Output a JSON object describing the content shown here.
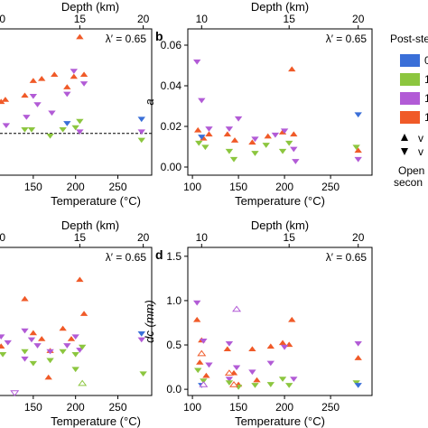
{
  "legend": {
    "title": "Post-ste",
    "items": [
      {
        "label": "0",
        "color": "#3a6fd8"
      },
      {
        "label": "1",
        "color": "#8cc63f"
      },
      {
        "label": "1",
        "color": "#b25bd6"
      },
      {
        "label": "1",
        "color": "#f05a28"
      }
    ],
    "up_label": "v",
    "down_label": "v",
    "note_lines": [
      "Open",
      "secon"
    ]
  },
  "chart_data": [
    {
      "type": "scatter",
      "panel": "a",
      "panel_label": "",
      "annotation": "λ′ = 0.65",
      "xlabel": "Temperature (°C)",
      "ylabel": "",
      "top_axis_label": "Depth (km)",
      "top_ticks": [
        "10",
        "15",
        "20"
      ],
      "top_tick_values_temp": [
        110,
        205,
        280
      ],
      "xlim": [
        100,
        290
      ],
      "xticks": [
        150,
        200,
        250
      ],
      "ylim": [
        0.0,
        0.07
      ],
      "yticks": [],
      "hline": 0.02,
      "series": [
        {
          "color": "#f05a28",
          "points": [
            [
              104,
              0.037,
              "up"
            ],
            [
              108,
              0.033,
              "up"
            ],
            [
              112,
              0.035,
              "up"
            ],
            [
              117,
              0.036,
              "up"
            ],
            [
              140,
              0.038,
              "up"
            ],
            [
              150,
              0.045,
              "up"
            ],
            [
              160,
              0.046,
              "up"
            ],
            [
              175,
              0.048,
              "up"
            ],
            [
              190,
              0.042,
              "up"
            ],
            [
              198,
              0.047,
              "up"
            ],
            [
              205,
              0.066,
              "up"
            ],
            [
              210,
              0.048,
              "up"
            ]
          ]
        },
        {
          "color": "#b25bd6",
          "points": [
            [
              105,
              0.026,
              "down"
            ],
            [
              110,
              0.031,
              "down"
            ],
            [
              118,
              0.024,
              "down"
            ],
            [
              142,
              0.028,
              "down"
            ],
            [
              150,
              0.038,
              "down"
            ],
            [
              155,
              0.034,
              "down"
            ],
            [
              172,
              0.03,
              "down"
            ],
            [
              190,
              0.039,
              "down"
            ],
            [
              198,
              0.05,
              "down"
            ],
            [
              205,
              0.021,
              "down"
            ],
            [
              210,
              0.044,
              "down"
            ],
            [
              278,
              0.021,
              "down"
            ]
          ]
        },
        {
          "color": "#8cc63f",
          "points": [
            [
              104,
              0.021,
              "down"
            ],
            [
              110,
              0.02,
              "down"
            ],
            [
              140,
              0.022,
              "down"
            ],
            [
              148,
              0.022,
              "down"
            ],
            [
              170,
              0.019,
              "down"
            ],
            [
              185,
              0.022,
              "down"
            ],
            [
              200,
              0.023,
              "down"
            ],
            [
              205,
              0.026,
              "down"
            ],
            [
              278,
              0.017,
              "down"
            ]
          ]
        },
        {
          "color": "#3a6fd8",
          "points": [
            [
              108,
              0.024,
              "down"
            ],
            [
              190,
              0.025,
              "down"
            ],
            [
              278,
              0.027,
              "down"
            ]
          ]
        }
      ]
    },
    {
      "type": "scatter",
      "panel": "b",
      "panel_label": "b",
      "annotation": "λ′ = 0.65",
      "xlabel": "Temperature (°C)",
      "ylabel": "a",
      "top_axis_label": "Depth (km)",
      "top_ticks": [
        "10",
        "15",
        "20"
      ],
      "top_tick_values_temp": [
        110,
        205,
        280
      ],
      "xlim": [
        95,
        295
      ],
      "xticks": [
        100,
        150,
        200,
        250
      ],
      "ylim": [
        -0.004,
        0.068
      ],
      "yticks": [
        0.0,
        0.02,
        0.04,
        0.06
      ],
      "ytick_labels": [
        "0.00",
        "0.02",
        "0.04",
        "0.06"
      ],
      "series": [
        {
          "color": "#f05a28",
          "points": [
            [
              106,
              0.018,
              "up"
            ],
            [
              112,
              0.014,
              "up"
            ],
            [
              118,
              0.016,
              "up"
            ],
            [
              138,
              0.016,
              "up"
            ],
            [
              146,
              0.013,
              "up"
            ],
            [
              165,
              0.012,
              "up"
            ],
            [
              182,
              0.015,
              "up"
            ],
            [
              198,
              0.017,
              "up"
            ],
            [
              208,
              0.048,
              "up"
            ],
            [
              210,
              0.016,
              "up"
            ],
            [
              280,
              0.008,
              "up"
            ]
          ]
        },
        {
          "color": "#b25bd6",
          "points": [
            [
              105,
              0.052,
              "down"
            ],
            [
              110,
              0.033,
              "down"
            ],
            [
              118,
              0.019,
              "down"
            ],
            [
              140,
              0.019,
              "down"
            ],
            [
              150,
              0.024,
              "down"
            ],
            [
              168,
              0.014,
              "down"
            ],
            [
              190,
              0.016,
              "down"
            ],
            [
              200,
              0.018,
              "down"
            ],
            [
              210,
              0.009,
              "down"
            ],
            [
              212,
              0.003,
              "down"
            ],
            [
              280,
              0.004,
              "down"
            ]
          ]
        },
        {
          "color": "#8cc63f",
          "points": [
            [
              107,
              0.012,
              "down"
            ],
            [
              114,
              0.01,
              "down"
            ],
            [
              140,
              0.008,
              "down"
            ],
            [
              145,
              0.004,
              "down"
            ],
            [
              168,
              0.007,
              "down"
            ],
            [
              180,
              0.011,
              "down"
            ],
            [
              198,
              0.008,
              "down"
            ],
            [
              205,
              0.012,
              "down"
            ],
            [
              278,
              0.01,
              "down"
            ]
          ]
        },
        {
          "color": "#3a6fd8",
          "points": [
            [
              110,
              0.015,
              "down"
            ],
            [
              280,
              0.026,
              "down"
            ]
          ]
        }
      ]
    },
    {
      "type": "scatter",
      "panel": "c",
      "panel_label": "",
      "annotation": "λ′ = 0.65",
      "xlabel": "Temperature (°C)",
      "ylabel": "",
      "top_axis_label": "Depth (km)",
      "top_ticks": [
        "10",
        "15",
        "20"
      ],
      "top_tick_values_temp": [
        110,
        205,
        280
      ],
      "xlim": [
        100,
        290
      ],
      "xticks": [
        150,
        200,
        250
      ],
      "ylim": [
        0.0,
        1.0
      ],
      "yticks": [],
      "series": [
        {
          "color": "#f05a28",
          "points": [
            [
              104,
              0.55,
              "up"
            ],
            [
              108,
              0.4,
              "up"
            ],
            [
              112,
              0.33,
              "up"
            ],
            [
              140,
              0.65,
              "up"
            ],
            [
              150,
              0.42,
              "up"
            ],
            [
              160,
              0.38,
              "up"
            ],
            [
              170,
              0.3,
              "up"
            ],
            [
              185,
              0.45,
              "up"
            ],
            [
              195,
              0.38,
              "up"
            ],
            [
              205,
              0.78,
              "up"
            ],
            [
              210,
              0.55,
              "up"
            ],
            [
              168,
              0.12,
              "up"
            ],
            [
              110,
              0.15,
              "up"
            ]
          ]
        },
        {
          "color": "#b25bd6",
          "points": [
            [
              106,
              0.47,
              "down"
            ],
            [
              112,
              0.4,
              "down"
            ],
            [
              120,
              0.36,
              "down"
            ],
            [
              140,
              0.44,
              "down"
            ],
            [
              148,
              0.38,
              "down"
            ],
            [
              155,
              0.34,
              "down"
            ],
            [
              170,
              0.3,
              "down"
            ],
            [
              190,
              0.34,
              "down"
            ],
            [
              200,
              0.4,
              "down"
            ],
            [
              205,
              0.31,
              "down"
            ],
            [
              278,
              0.38,
              "down"
            ],
            [
              140,
              0.25,
              "down"
            ]
          ]
        },
        {
          "color": "#8cc63f",
          "points": [
            [
              106,
              0.32,
              "down"
            ],
            [
              114,
              0.28,
              "down"
            ],
            [
              140,
              0.3,
              "down"
            ],
            [
              150,
              0.22,
              "down"
            ],
            [
              170,
              0.24,
              "down"
            ],
            [
              185,
              0.3,
              "down"
            ],
            [
              200,
              0.28,
              "down"
            ],
            [
              208,
              0.33,
              "down"
            ],
            [
              280,
              0.15,
              "down"
            ],
            [
              200,
              0.18,
              "down"
            ]
          ]
        },
        {
          "color": "#3a6fd8",
          "points": [
            [
              110,
              0.36,
              "down"
            ],
            [
              278,
              0.42,
              "down"
            ]
          ]
        }
      ],
      "open_points": [
        [
          128,
          0.02,
          "#b25bd6",
          "down"
        ],
        [
          208,
          0.08,
          "#8cc63f",
          "up"
        ]
      ]
    },
    {
      "type": "scatter",
      "panel": "d",
      "panel_label": "d",
      "annotation": "λ′ = 0.65",
      "xlabel": "Temperature (°C)",
      "ylabel": "dc (mm)",
      "top_axis_label": "Depth (km)",
      "top_ticks": [
        "10",
        "15",
        "20"
      ],
      "top_tick_values_temp": [
        110,
        205,
        280
      ],
      "xlim": [
        95,
        295
      ],
      "xticks": [
        100,
        150,
        200,
        250
      ],
      "ylim": [
        -0.07,
        1.6
      ],
      "yticks": [
        0.0,
        0.5,
        1.0,
        1.5
      ],
      "ytick_labels": [
        "0.0",
        "0.5",
        "1.0",
        "1.5"
      ],
      "series": [
        {
          "color": "#f05a28",
          "points": [
            [
              105,
              0.78,
              "up"
            ],
            [
              110,
              0.55,
              "up"
            ],
            [
              108,
              0.3,
              "up"
            ],
            [
              115,
              0.15,
              "up"
            ],
            [
              138,
              0.45,
              "up"
            ],
            [
              145,
              0.18,
              "up"
            ],
            [
              150,
              0.05,
              "up"
            ],
            [
              170,
              0.1,
              "up"
            ],
            [
              185,
              0.48,
              "up"
            ],
            [
              198,
              0.52,
              "up"
            ],
            [
              205,
              0.5,
              "up"
            ],
            [
              208,
              0.78,
              "up"
            ],
            [
              280,
              0.35,
              "up"
            ],
            [
              165,
              0.45,
              "up"
            ]
          ]
        },
        {
          "color": "#b25bd6",
          "points": [
            [
              105,
              0.98,
              "down"
            ],
            [
              112,
              0.55,
              "down"
            ],
            [
              118,
              0.28,
              "down"
            ],
            [
              140,
              0.52,
              "down"
            ],
            [
              148,
              0.25,
              "down"
            ],
            [
              165,
              0.2,
              "down"
            ],
            [
              185,
              0.3,
              "down"
            ],
            [
              200,
              0.48,
              "down"
            ],
            [
              210,
              0.12,
              "down"
            ],
            [
              280,
              0.52,
              "down"
            ],
            [
              140,
              0.12,
              "down"
            ]
          ]
        },
        {
          "color": "#8cc63f",
          "points": [
            [
              106,
              0.22,
              "down"
            ],
            [
              112,
              0.1,
              "down"
            ],
            [
              140,
              0.08,
              "down"
            ],
            [
              150,
              0.03,
              "down"
            ],
            [
              168,
              0.05,
              "down"
            ],
            [
              185,
              0.06,
              "down"
            ],
            [
              198,
              0.12,
              "down"
            ],
            [
              205,
              0.05,
              "down"
            ],
            [
              278,
              0.08,
              "down"
            ]
          ]
        },
        {
          "color": "#3a6fd8",
          "points": [
            [
              110,
              0.05,
              "down"
            ],
            [
              280,
              0.05,
              "down"
            ]
          ]
        }
      ],
      "open_points": [
        [
          148,
          0.9,
          "#b25bd6",
          "up"
        ],
        [
          140,
          0.18,
          "#f05a28",
          "up"
        ],
        [
          110,
          0.4,
          "#f05a28",
          "up"
        ],
        [
          112,
          0.05,
          "#b25bd6",
          "up"
        ],
        [
          145,
          0.05,
          "#f05a28",
          "up"
        ]
      ]
    }
  ]
}
